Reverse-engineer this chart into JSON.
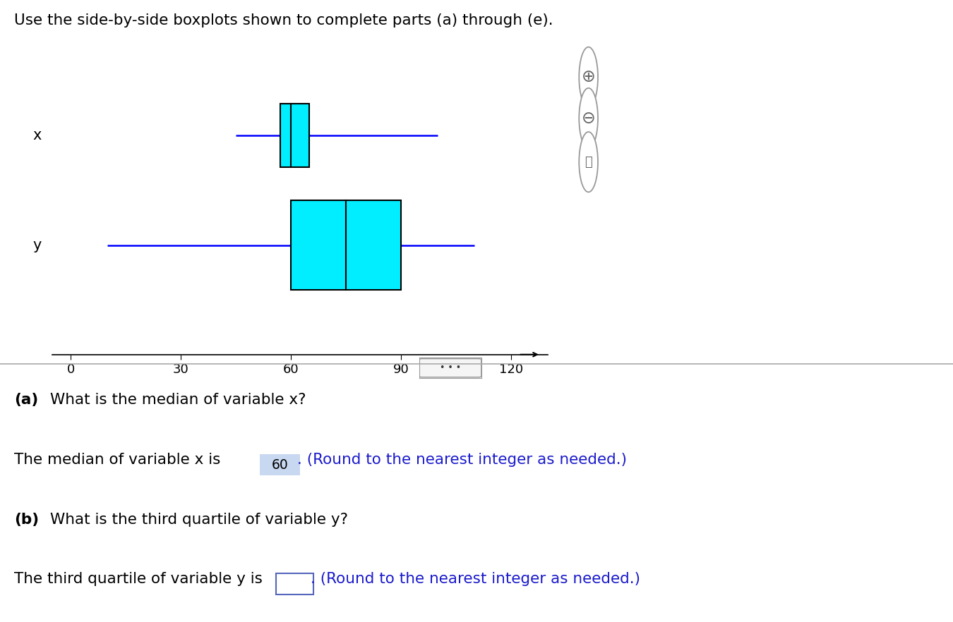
{
  "title": "Use the side-by-side boxplots shown to complete parts (a) through (e).",
  "background_color": "#ffffff",
  "axis_xlim": [
    -5,
    130
  ],
  "xticks": [
    0,
    30,
    60,
    90,
    120
  ],
  "box_color": "#00eeff",
  "box_edge_color": "#000000",
  "whisker_color": "#0000ff",
  "x_label": "x",
  "y_label": "y",
  "x_box": {
    "min": 45,
    "q1": 57,
    "median": 60,
    "q3": 65,
    "max": 100
  },
  "y_box": {
    "min": 10,
    "q1": 60,
    "median": 75,
    "q3": 90,
    "max": 110
  },
  "divider_color": "#aaaaaa",
  "icon_color": "#666666"
}
